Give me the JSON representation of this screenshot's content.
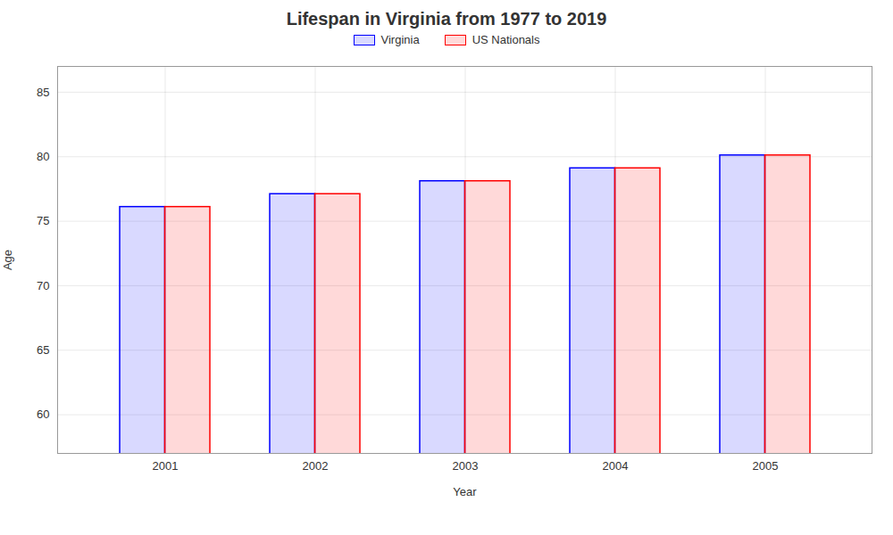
{
  "chart_data": {
    "type": "bar",
    "title": "Lifespan in Virginia from 1977 to 2019",
    "xlabel": "Year",
    "ylabel": "Age",
    "categories": [
      "2001",
      "2002",
      "2003",
      "2004",
      "2005"
    ],
    "series": [
      {
        "name": "Virginia",
        "color": "#0000ff",
        "values": [
          76.1,
          77.1,
          78.1,
          79.1,
          80.1
        ]
      },
      {
        "name": "US Nationals",
        "color": "#ff0000",
        "values": [
          76.1,
          77.1,
          78.1,
          79.1,
          80.1
        ]
      }
    ],
    "ylim": [
      57,
      87
    ],
    "yticks": [
      60,
      65,
      70,
      75,
      80,
      85
    ],
    "grid": true,
    "legend": "top"
  }
}
